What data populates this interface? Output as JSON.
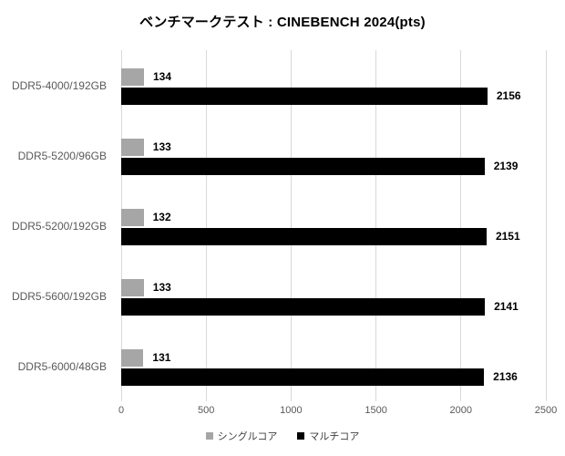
{
  "chart_data": {
    "type": "bar",
    "orientation": "horizontal",
    "title": "ベンチマークテスト : CINEBENCH 2024(pts)",
    "categories": [
      "DDR5-4000/192GB",
      "DDR5-5200/96GB",
      "DDR5-5200/192GB",
      "DDR5-5600/192GB",
      "DDR5-6000/48GB"
    ],
    "series": [
      {
        "name": "シングルコア",
        "color": "#a6a6a6",
        "values": [
          134,
          133,
          132,
          133,
          131
        ]
      },
      {
        "name": "マルチコア",
        "color": "#000000",
        "values": [
          2156,
          2139,
          2151,
          2141,
          2136
        ]
      }
    ],
    "xlabel": "",
    "ylabel": "",
    "xlim": [
      0,
      2500
    ],
    "xticks": [
      0,
      500,
      1000,
      1500,
      2000,
      2500
    ],
    "grid": "vertical",
    "legend_position": "bottom",
    "data_labels": "outside-end"
  },
  "colors": {
    "background": "#ffffff",
    "gridline": "#d9d9d9",
    "axis_text": "#595959",
    "category_text": "#595959",
    "value_text": "#000000",
    "title_text": "#000000",
    "legend_text": "#404040"
  }
}
